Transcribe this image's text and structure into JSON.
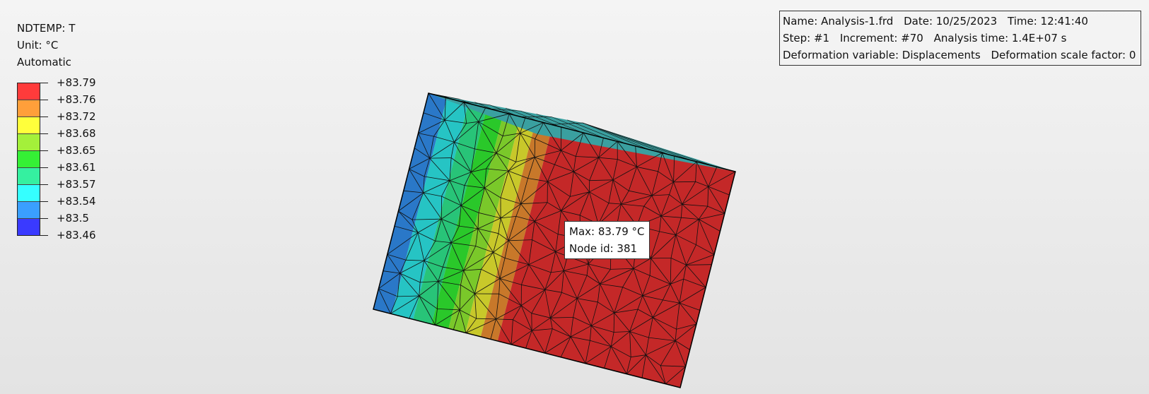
{
  "legend": {
    "variable": "NDTEMP: T",
    "unit": "Unit: °C",
    "mode": "Automatic",
    "colors": [
      "#ff3b3b",
      "#ff9f3a",
      "#ffff3b",
      "#a4f03a",
      "#35f035",
      "#35f0a0",
      "#35ffff",
      "#3a9fff",
      "#3a3aff"
    ],
    "labels": [
      "+83.79",
      "+83.76",
      "+83.72",
      "+83.68",
      "+83.65",
      "+83.61",
      "+83.57",
      "+83.54",
      "+83.5",
      "+83.46"
    ]
  },
  "info": {
    "name": "Name: Analysis-1.frd",
    "date": "Date: 10/25/2023",
    "time": "Time: 12:41:40",
    "step": "Step: #1",
    "increment": "Increment: #70",
    "analysis_time": "Analysis time: 1.4E+07 s",
    "deformation_variable": "Deformation variable: Displacements",
    "deformation_scale": "Deformation scale factor: 0"
  },
  "tooltip": {
    "max": "Max: 83.79 °C",
    "node": "Node id: 381"
  },
  "mesh_colors": [
    "#2a78c8",
    "#26c4c4",
    "#28c478",
    "#2ac82a",
    "#7ac82a",
    "#c8c82a",
    "#c8782a",
    "#c42828"
  ]
}
